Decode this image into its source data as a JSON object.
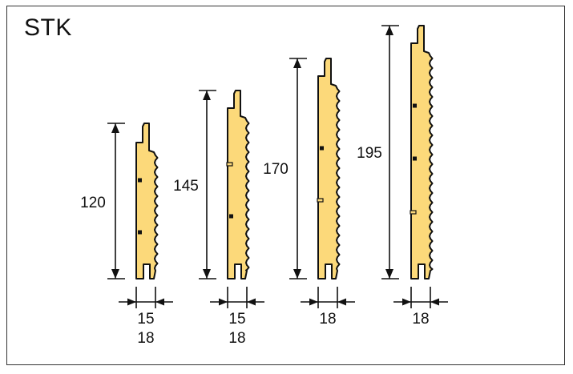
{
  "title": "STK",
  "profiles": [
    {
      "height": "120",
      "widths": [
        "15",
        "18"
      ]
    },
    {
      "height": "145",
      "widths": [
        "15",
        "18"
      ]
    },
    {
      "height": "170",
      "widths": [
        "18"
      ]
    },
    {
      "height": "195",
      "widths": [
        "18"
      ]
    }
  ],
  "colors": {
    "board_fill": "#fcd97a",
    "outline": "#111111",
    "frame": "#333333"
  }
}
